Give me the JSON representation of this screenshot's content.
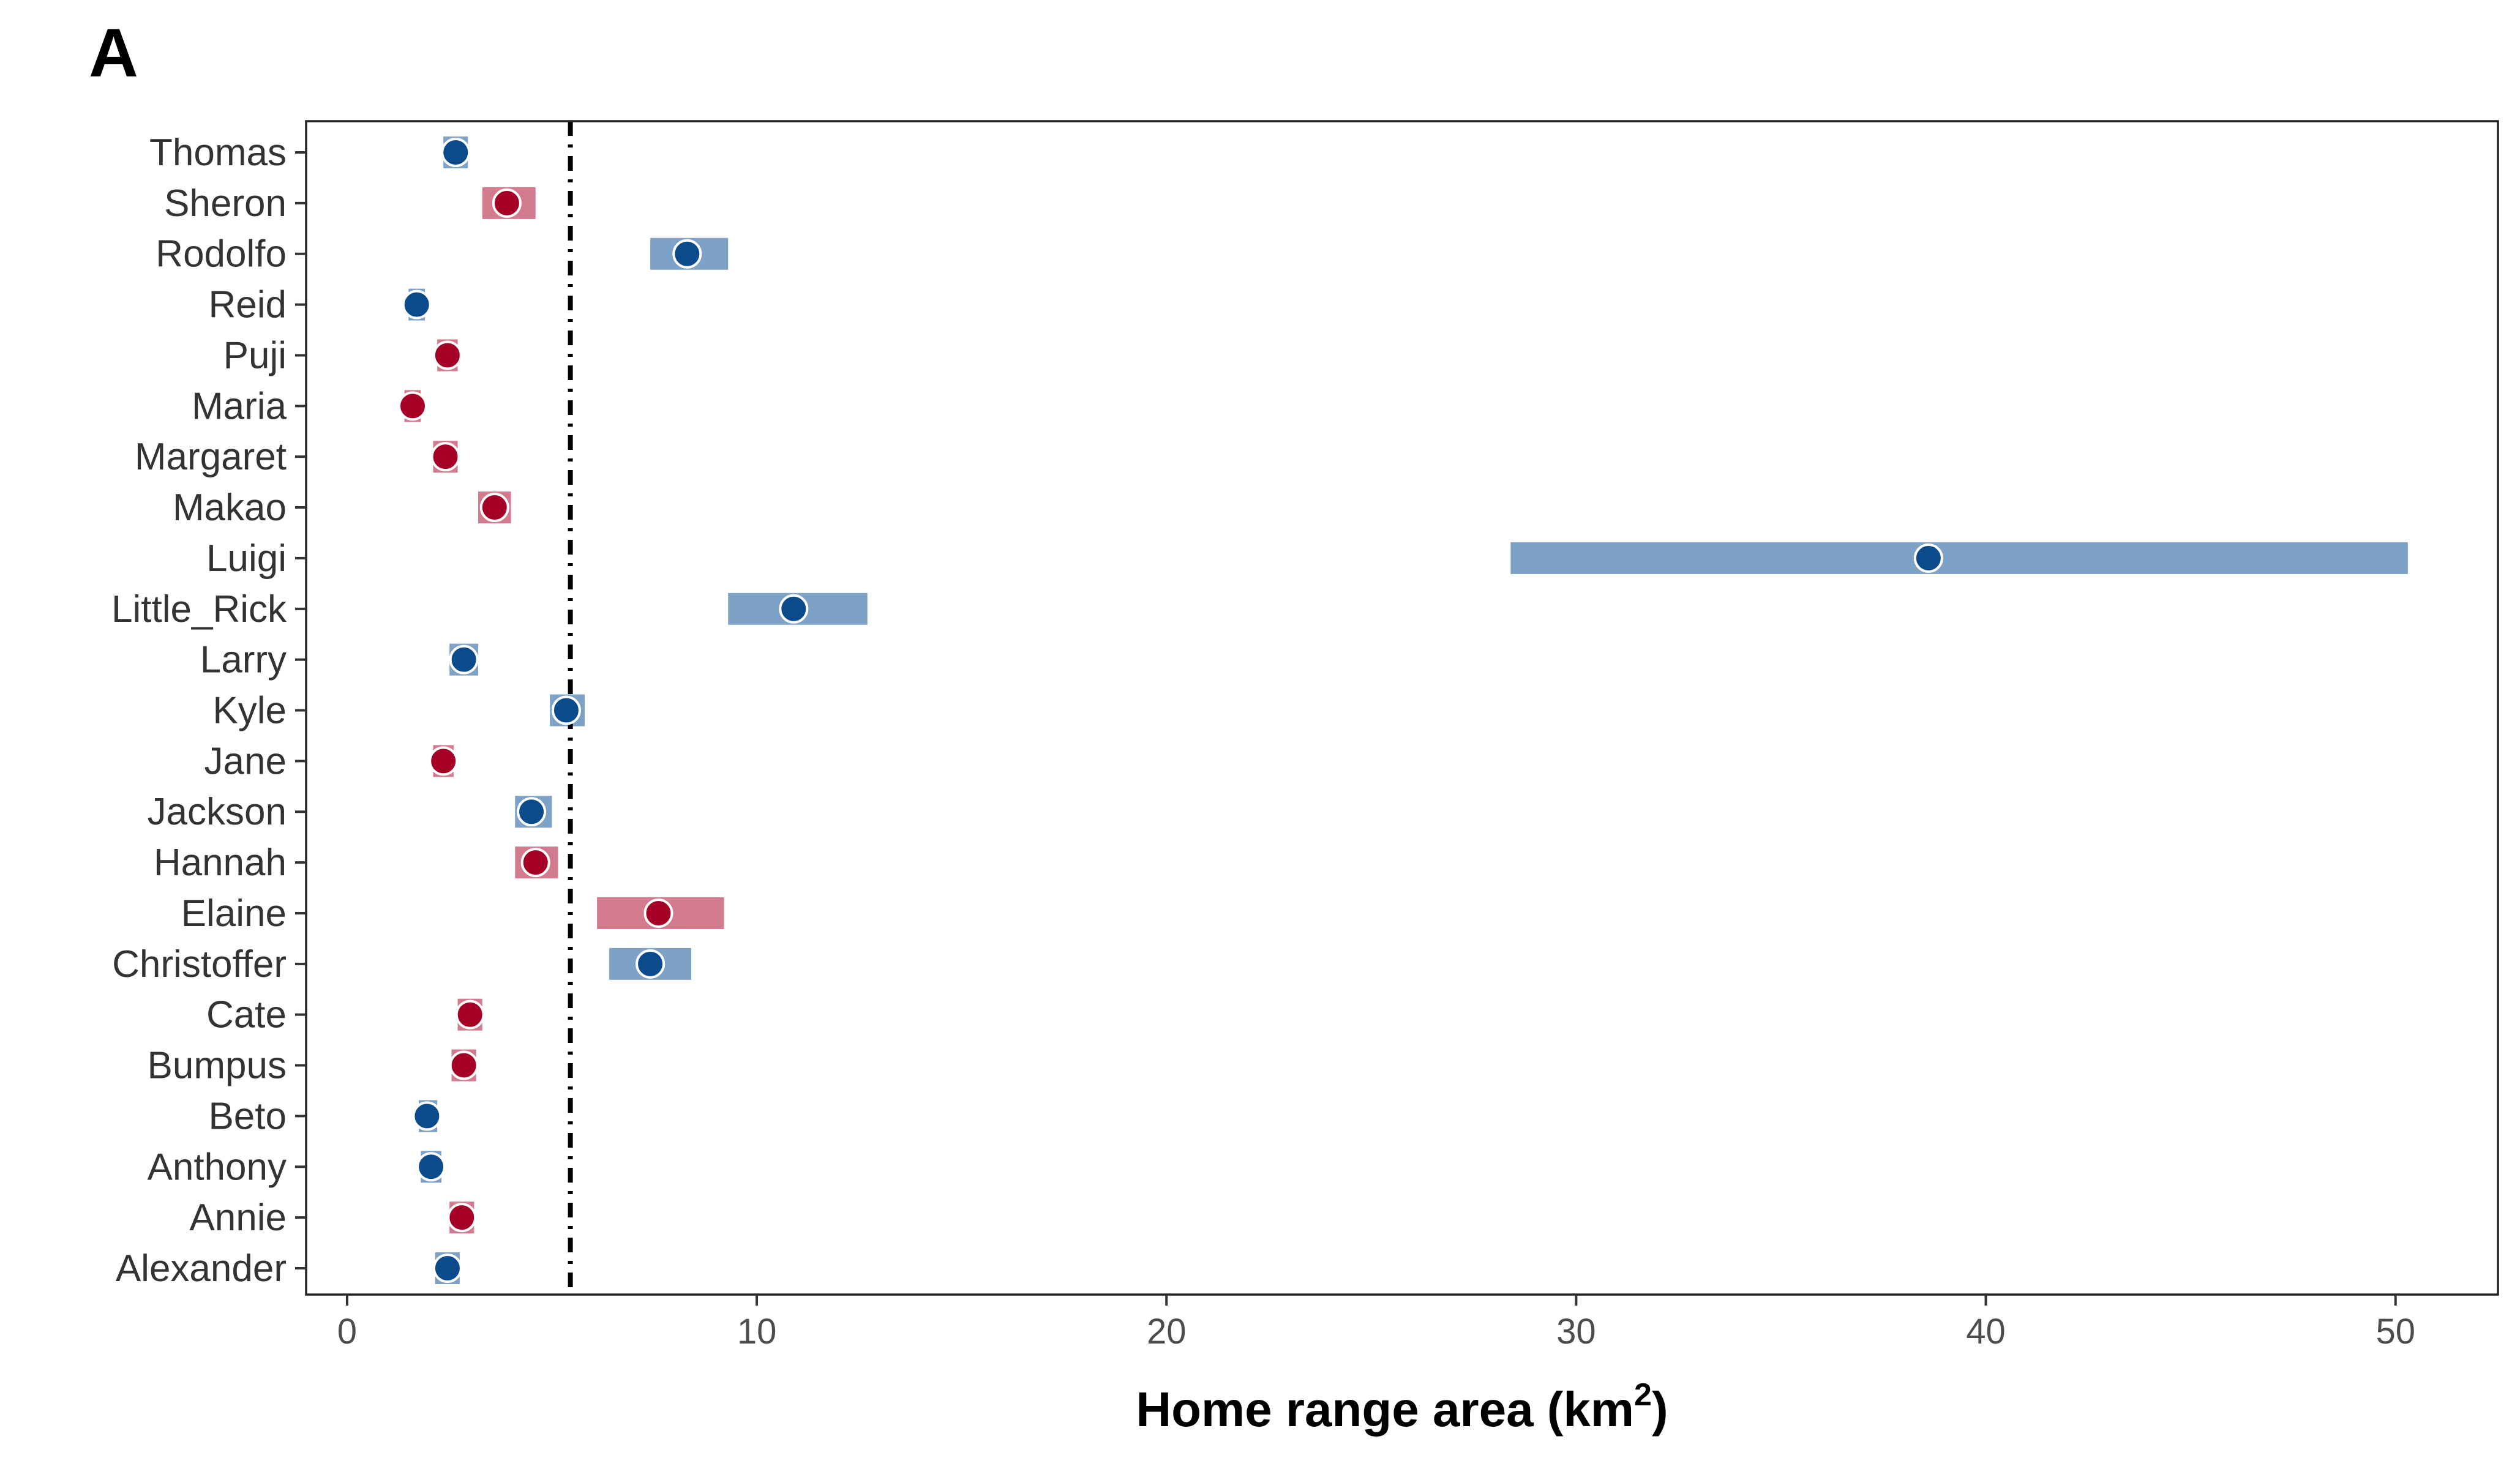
{
  "panel_label": "A",
  "chart_data": {
    "type": "scatter",
    "title": "",
    "xlabel": "Home range area (km",
    "xlabel_sup": "2",
    "xlabel_suffix": ")",
    "ylabel": "",
    "xlim": [
      -1,
      52.5
    ],
    "xticks": [
      0,
      10,
      20,
      30,
      40,
      50
    ],
    "grid": false,
    "legend": "none",
    "reference_line": {
      "x": 5.45,
      "style": "dot-dash",
      "color": "#000000"
    },
    "colors": {
      "blue_point": "#0b4a8b",
      "blue_interval": "#7ea1c6",
      "red_point": "#a50026",
      "red_interval": "#d37b8e"
    },
    "individuals": [
      {
        "name": "Thomas",
        "group": "blue",
        "estimate": 2.65,
        "lower": 2.35,
        "upper": 2.95
      },
      {
        "name": "Sheron",
        "group": "red",
        "estimate": 3.9,
        "lower": 3.3,
        "upper": 4.6
      },
      {
        "name": "Rodolfo",
        "group": "blue",
        "estimate": 8.3,
        "lower": 7.4,
        "upper": 9.3
      },
      {
        "name": "Reid",
        "group": "blue",
        "estimate": 1.7,
        "lower": 1.5,
        "upper": 1.9
      },
      {
        "name": "Puji",
        "group": "red",
        "estimate": 2.45,
        "lower": 2.2,
        "upper": 2.7
      },
      {
        "name": "Maria",
        "group": "red",
        "estimate": 1.6,
        "lower": 1.4,
        "upper": 1.8
      },
      {
        "name": "Margaret",
        "group": "red",
        "estimate": 2.4,
        "lower": 2.1,
        "upper": 2.7
      },
      {
        "name": "Makao",
        "group": "red",
        "estimate": 3.6,
        "lower": 3.2,
        "upper": 4.0
      },
      {
        "name": "Luigi",
        "group": "blue",
        "estimate": 38.6,
        "lower": 28.4,
        "upper": 50.3
      },
      {
        "name": "Little_Rick",
        "group": "blue",
        "estimate": 10.9,
        "lower": 9.3,
        "upper": 12.7
      },
      {
        "name": "Larry",
        "group": "blue",
        "estimate": 2.85,
        "lower": 2.5,
        "upper": 3.2
      },
      {
        "name": "Kyle",
        "group": "blue",
        "estimate": 5.35,
        "lower": 4.95,
        "upper": 5.8
      },
      {
        "name": "Jane",
        "group": "red",
        "estimate": 2.35,
        "lower": 2.1,
        "upper": 2.6
      },
      {
        "name": "Jackson",
        "group": "blue",
        "estimate": 4.5,
        "lower": 4.1,
        "upper": 5.0
      },
      {
        "name": "Hannah",
        "group": "red",
        "estimate": 4.6,
        "lower": 4.1,
        "upper": 5.15
      },
      {
        "name": "Elaine",
        "group": "red",
        "estimate": 7.6,
        "lower": 6.1,
        "upper": 9.2
      },
      {
        "name": "Christoffer",
        "group": "blue",
        "estimate": 7.4,
        "lower": 6.4,
        "upper": 8.4
      },
      {
        "name": "Cate",
        "group": "red",
        "estimate": 3.0,
        "lower": 2.7,
        "upper": 3.3
      },
      {
        "name": "Bumpus",
        "group": "red",
        "estimate": 2.85,
        "lower": 2.55,
        "upper": 3.15
      },
      {
        "name": "Beto",
        "group": "blue",
        "estimate": 1.95,
        "lower": 1.75,
        "upper": 2.2
      },
      {
        "name": "Anthony",
        "group": "blue",
        "estimate": 2.05,
        "lower": 1.8,
        "upper": 2.3
      },
      {
        "name": "Annie",
        "group": "red",
        "estimate": 2.8,
        "lower": 2.5,
        "upper": 3.1
      },
      {
        "name": "Alexander",
        "group": "blue",
        "estimate": 2.45,
        "lower": 2.15,
        "upper": 2.75
      }
    ]
  }
}
